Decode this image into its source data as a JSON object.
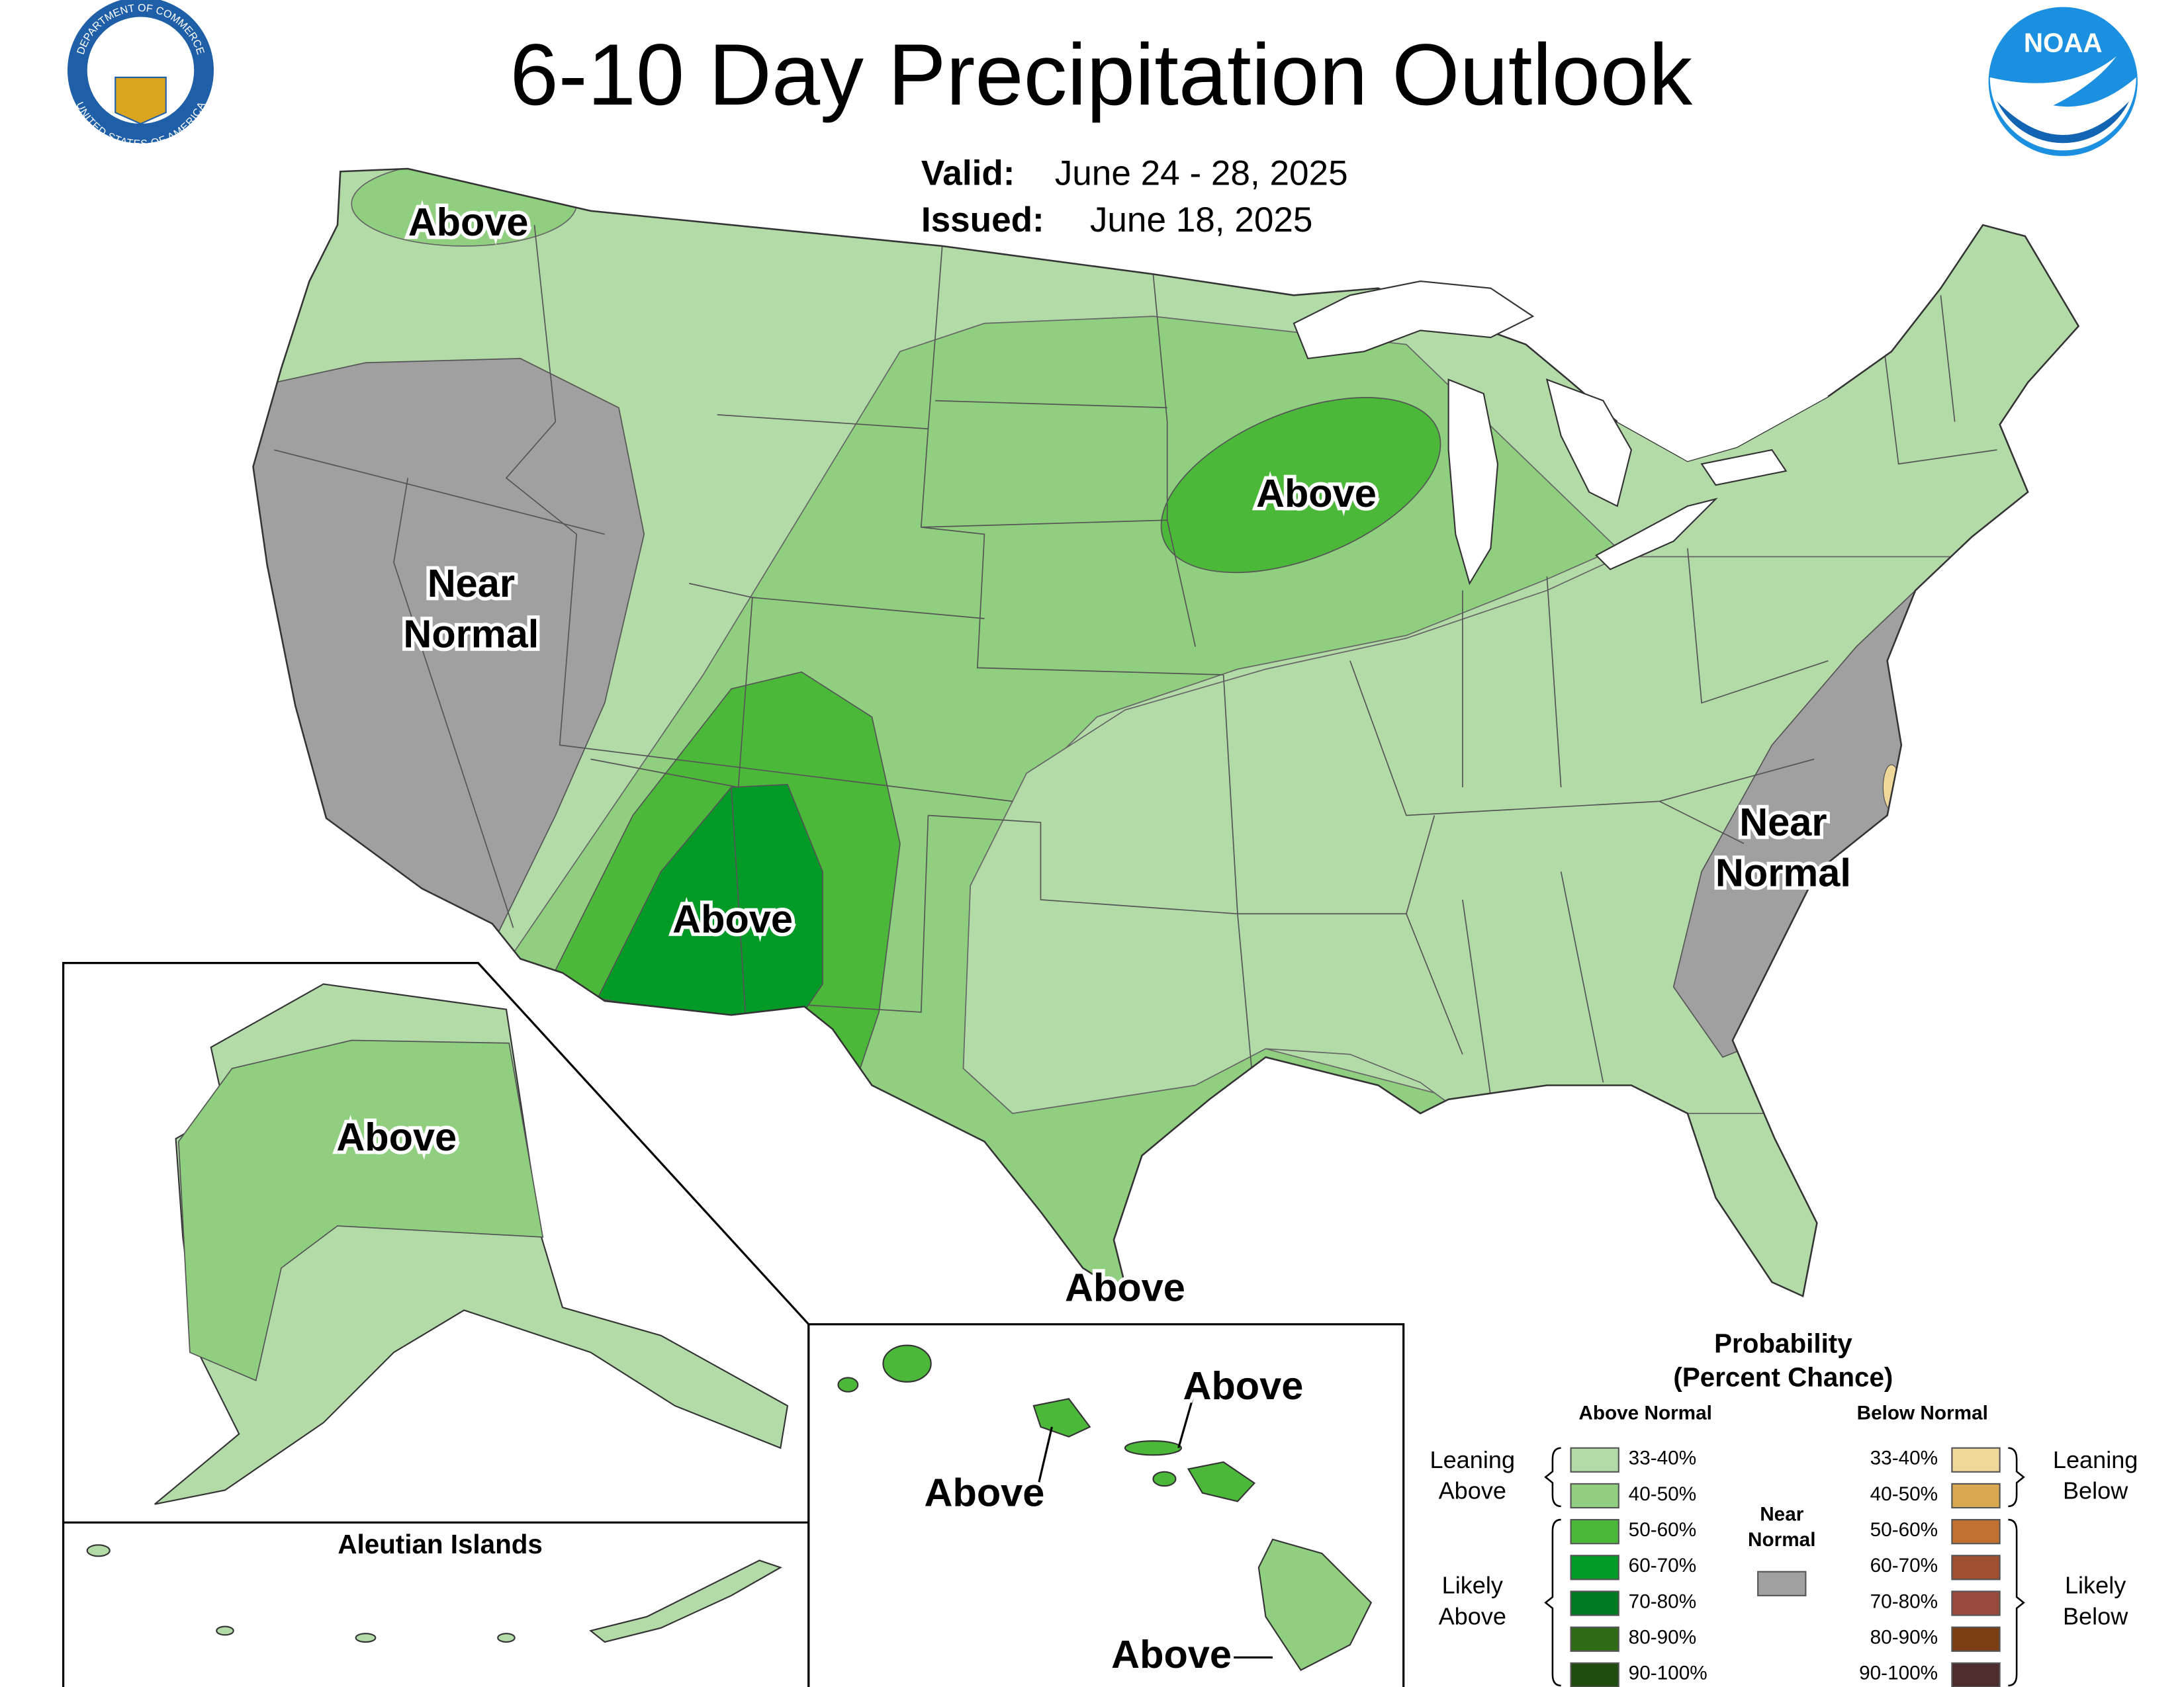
{
  "header": {
    "title": "6-10 Day Precipitation Outlook",
    "valid_label": "Valid:",
    "valid": "June 24 - 28, 2025",
    "issued_label": "Issued:",
    "issued": "June 18, 2025"
  },
  "logos": {
    "commerce_top": "DEPARTMENT OF COMMERCE",
    "commerce_bottom": "UNITED STATES OF AMERICA",
    "noaa": "NOAA"
  },
  "map_labels": [
    {
      "lines": [
        "Above"
      ]
    },
    {
      "lines": [
        "Near",
        "Normal"
      ]
    },
    {
      "lines": [
        "Above"
      ]
    },
    {
      "lines": [
        "Above"
      ]
    },
    {
      "lines": [
        "Near",
        "Normal"
      ]
    },
    {
      "lines": [
        "Above"
      ]
    }
  ],
  "insets": {
    "alaska": {
      "label": "Above"
    },
    "aleutian": {
      "title": "Aleutian Islands"
    },
    "hawaii": {
      "labels": [
        "Above",
        "Above",
        "Above"
      ]
    }
  },
  "legend": {
    "title": [
      "Probability",
      "(Percent Chance)"
    ],
    "above_heading": "Above Normal",
    "below_heading": "Below Normal",
    "near_heading": [
      "Near",
      "Normal"
    ],
    "near_color": "#a0a0a0",
    "above_groups": [
      [
        "Leaning",
        "Above"
      ],
      [
        "Likely",
        "Above"
      ]
    ],
    "below_groups": [
      [
        "Leaning",
        "Below"
      ],
      [
        "Likely",
        "Below"
      ]
    ],
    "above": [
      {
        "range": "33-40%",
        "color": "#b3dba8"
      },
      {
        "range": "40-50%",
        "color": "#8fcf7f"
      },
      {
        "range": "50-60%",
        "color": "#4cb83a"
      },
      {
        "range": "60-70%",
        "color": "#009a26"
      },
      {
        "range": "70-80%",
        "color": "#007a1e"
      },
      {
        "range": "80-90%",
        "color": "#2f6a14"
      },
      {
        "range": "90-100%",
        "color": "#1f4d10"
      }
    ],
    "below": [
      {
        "range": "33-40%",
        "color": "#f0d89b"
      },
      {
        "range": "40-50%",
        "color": "#d9a952"
      },
      {
        "range": "50-60%",
        "color": "#c07030"
      },
      {
        "range": "60-70%",
        "color": "#a05030"
      },
      {
        "range": "70-80%",
        "color": "#9a4a3c"
      },
      {
        "range": "80-90%",
        "color": "#7a3e12"
      },
      {
        "range": "90-100%",
        "color": "#4d2c2c"
      }
    ]
  }
}
